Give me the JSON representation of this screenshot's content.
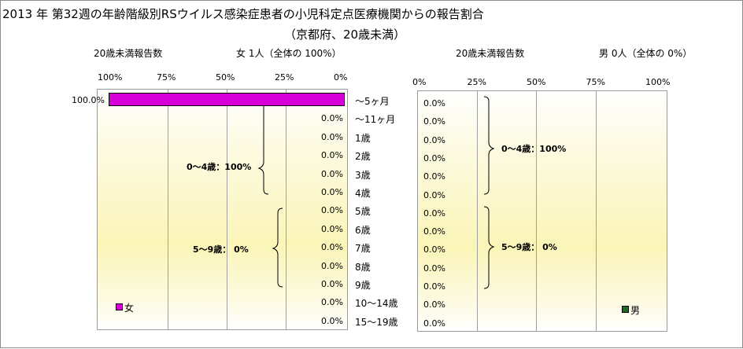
{
  "title": "2013 年 第32週の年齢階級別RSウイルス感染症患者の小児科定点医療機関からの報告割合",
  "subtitle": "（京都府、20歳未満）",
  "female": {
    "header_label": "20歳未満報告数",
    "header_count": "女  1人（全体の  100%）",
    "legend": "女",
    "color": "#d800d8",
    "ticks": [
      "100%",
      "75%",
      "50%",
      "25%",
      "0%"
    ],
    "group_labels": [
      "0～4歳：100%",
      "5～9歳：  0%"
    ]
  },
  "male": {
    "header_label": "20歳未満報告数",
    "header_count": "男  0人（全体の  0%）",
    "legend": "男",
    "color": "#1a6b1a",
    "ticks": [
      "0%",
      "25%",
      "50%",
      "75%",
      "100%"
    ],
    "group_labels": [
      "0～4歳：100%",
      "5～9歳：  0%"
    ]
  },
  "chart_data": {
    "type": "bar",
    "categories": [
      "～5ヶ月",
      "～11ヶ月",
      "1歳",
      "2歳",
      "3歳",
      "4歳",
      "5歳",
      "6歳",
      "7歳",
      "8歳",
      "9歳",
      "10～14歳",
      "15～19歳"
    ],
    "series": [
      {
        "name": "女",
        "values": [
          100.0,
          0.0,
          0.0,
          0.0,
          0.0,
          0.0,
          0.0,
          0.0,
          0.0,
          0.0,
          0.0,
          0.0,
          0.0
        ],
        "labels": [
          "100.0%",
          "0.0%",
          "0.0%",
          "0.0%",
          "0.0%",
          "0.0%",
          "0.0%",
          "0.0%",
          "0.0%",
          "0.0%",
          "0.0%",
          "0.0%",
          "0.0%"
        ]
      },
      {
        "name": "男",
        "values": [
          0.0,
          0.0,
          0.0,
          0.0,
          0.0,
          0.0,
          0.0,
          0.0,
          0.0,
          0.0,
          0.0,
          0.0,
          0.0
        ],
        "labels": [
          "0.0%",
          "0.0%",
          "0.0%",
          "0.0%",
          "0.0%",
          "0.0%",
          "0.0%",
          "0.0%",
          "0.0%",
          "0.0%",
          "0.0%",
          "0.0%",
          "0.0%"
        ]
      }
    ],
    "xlim": [
      0,
      100
    ],
    "grid": true,
    "orientation": "horizontal"
  }
}
